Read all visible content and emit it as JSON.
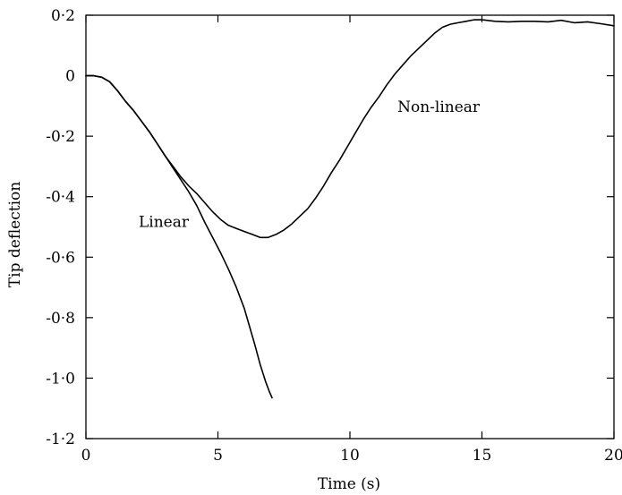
{
  "chart_data": {
    "type": "line",
    "xlabel": "Time (s)",
    "ylabel": "Tip deflection",
    "xlim": [
      0,
      20
    ],
    "ylim": [
      -1.2,
      0.2
    ],
    "grid": false,
    "x_ticks": [
      {
        "value": 0,
        "label": "0"
      },
      {
        "value": 5,
        "label": "5"
      },
      {
        "value": 10,
        "label": "10"
      },
      {
        "value": 15,
        "label": "15"
      },
      {
        "value": 20,
        "label": "20"
      }
    ],
    "y_ticks": [
      {
        "value": 0.2,
        "label": "0·2"
      },
      {
        "value": 0,
        "label": "0"
      },
      {
        "value": -0.2,
        "label": "-0·2"
      },
      {
        "value": -0.4,
        "label": "-0·4"
      },
      {
        "value": -0.6,
        "label": "-0·6"
      },
      {
        "value": -0.8,
        "label": "-0·8"
      },
      {
        "value": -1.0,
        "label": "-1·0"
      },
      {
        "value": -1.2,
        "label": "-1·2"
      }
    ],
    "series": [
      {
        "name": "Linear",
        "label_at": [
          2.0,
          -0.5
        ],
        "x": [
          0,
          0.3,
          0.6,
          0.9,
          1.2,
          1.5,
          1.8,
          2.1,
          2.4,
          2.7,
          3.0,
          3.3,
          3.6,
          3.9,
          4.2,
          4.5,
          4.8,
          5.1,
          5.4,
          5.7,
          6.0,
          6.2,
          6.4,
          6.6,
          6.8,
          6.95,
          7.05
        ],
        "y": [
          0.0,
          0.0,
          -0.005,
          -0.02,
          -0.05,
          -0.085,
          -0.115,
          -0.15,
          -0.185,
          -0.225,
          -0.265,
          -0.305,
          -0.345,
          -0.385,
          -0.43,
          -0.485,
          -0.535,
          -0.585,
          -0.64,
          -0.7,
          -0.77,
          -0.83,
          -0.89,
          -0.955,
          -1.01,
          -1.045,
          -1.065
        ]
      },
      {
        "name": "Non-linear",
        "label_at": [
          11.8,
          -0.12
        ],
        "x": [
          0,
          0.3,
          0.6,
          0.9,
          1.2,
          1.5,
          1.8,
          2.1,
          2.4,
          2.7,
          3.0,
          3.3,
          3.6,
          3.9,
          4.2,
          4.5,
          4.8,
          5.1,
          5.4,
          5.7,
          6.0,
          6.3,
          6.6,
          6.9,
          7.2,
          7.5,
          7.8,
          8.1,
          8.4,
          8.7,
          9.0,
          9.3,
          9.6,
          9.9,
          10.2,
          10.5,
          10.8,
          11.1,
          11.4,
          11.7,
          12.0,
          12.3,
          12.6,
          12.9,
          13.2,
          13.5,
          13.8,
          14.1,
          14.4,
          14.7,
          15.0,
          15.5,
          16.0,
          16.5,
          17.0,
          17.5,
          18.0,
          18.5,
          19.0,
          19.5,
          20.0
        ],
        "y": [
          0.0,
          0.0,
          -0.005,
          -0.02,
          -0.05,
          -0.085,
          -0.115,
          -0.15,
          -0.185,
          -0.225,
          -0.265,
          -0.3,
          -0.335,
          -0.365,
          -0.39,
          -0.42,
          -0.45,
          -0.475,
          -0.495,
          -0.505,
          -0.515,
          -0.525,
          -0.535,
          -0.535,
          -0.525,
          -0.51,
          -0.49,
          -0.465,
          -0.44,
          -0.405,
          -0.365,
          -0.32,
          -0.28,
          -0.235,
          -0.19,
          -0.145,
          -0.105,
          -0.07,
          -0.03,
          0.005,
          0.035,
          0.065,
          0.09,
          0.115,
          0.14,
          0.16,
          0.17,
          0.175,
          0.18,
          0.185,
          0.185,
          0.18,
          0.178,
          0.18,
          0.18,
          0.178,
          0.183,
          0.175,
          0.178,
          0.172,
          0.165
        ]
      }
    ]
  }
}
